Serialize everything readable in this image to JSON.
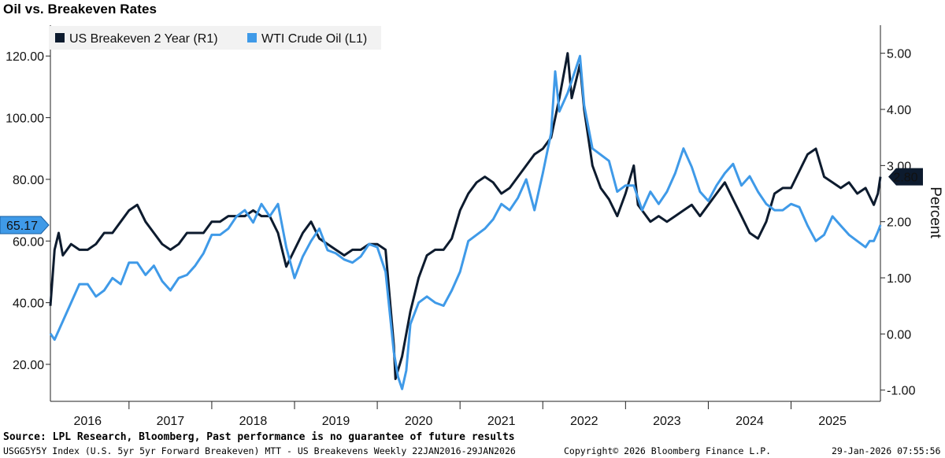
{
  "header": {
    "title": "Oil vs. Breakeven Rates"
  },
  "footer": {
    "source": "Source: LPL Research, Bloomberg, Past performance is no guarantee of future results",
    "index_line": "USGG5Y5Y Index (U.S. 5yr 5yr Forward Breakeven) MTT - US Breakevens Weekly 22JAN2016-29JAN2026",
    "copyright": "Copyright© 2026 Bloomberg Finance L.P.",
    "timestamp": "29-Jan-2026 07:55:56"
  },
  "colors": {
    "breakeven": "#0d1b2e",
    "oil": "#3f9ae8",
    "axis": "#222222"
  },
  "chart_data": {
    "type": "line",
    "x_tick_labels": [
      "2016",
      "2017",
      "2018",
      "2019",
      "2020",
      "2021",
      "2022",
      "2023",
      "2024",
      "2025"
    ],
    "x_range": [
      2016.05,
      2026.08
    ],
    "left_axis": {
      "ticks": [
        "20.00",
        "40.00",
        "60.00",
        "80.00",
        "100.00",
        "120.00"
      ],
      "range": [
        8,
        130
      ]
    },
    "right_axis": {
      "label": "Percent",
      "ticks": [
        "-1.00",
        "0.00",
        "1.00",
        "2.00",
        "3.00",
        "4.00",
        "5.00"
      ],
      "range": [
        -1.2,
        5.5
      ]
    },
    "legend": [
      {
        "name": "US Breakeven 2 Year  (R1)",
        "color": "#0d1b2e"
      },
      {
        "name": "WTI Crude Oil (L1)",
        "color": "#3f9ae8"
      }
    ],
    "last_value_labels": {
      "oil": "65.17",
      "breakeven": "2.80"
    },
    "series": [
      {
        "name": "WTI Crude Oil (L1)",
        "axis": "left",
        "points": [
          [
            2016.05,
            30
          ],
          [
            2016.1,
            28
          ],
          [
            2016.2,
            34
          ],
          [
            2016.3,
            40
          ],
          [
            2016.4,
            46
          ],
          [
            2016.5,
            46
          ],
          [
            2016.6,
            42
          ],
          [
            2016.7,
            44
          ],
          [
            2016.8,
            48
          ],
          [
            2016.9,
            46
          ],
          [
            2017.0,
            53
          ],
          [
            2017.1,
            53
          ],
          [
            2017.2,
            49
          ],
          [
            2017.3,
            52
          ],
          [
            2017.4,
            47
          ],
          [
            2017.5,
            44
          ],
          [
            2017.6,
            48
          ],
          [
            2017.7,
            49
          ],
          [
            2017.8,
            52
          ],
          [
            2017.9,
            56
          ],
          [
            2018.0,
            62
          ],
          [
            2018.1,
            62
          ],
          [
            2018.2,
            64
          ],
          [
            2018.3,
            68
          ],
          [
            2018.4,
            70
          ],
          [
            2018.5,
            66
          ],
          [
            2018.6,
            72
          ],
          [
            2018.7,
            68
          ],
          [
            2018.8,
            72
          ],
          [
            2018.9,
            58
          ],
          [
            2019.0,
            48
          ],
          [
            2019.1,
            55
          ],
          [
            2019.2,
            60
          ],
          [
            2019.3,
            64
          ],
          [
            2019.4,
            57
          ],
          [
            2019.5,
            56
          ],
          [
            2019.6,
            54
          ],
          [
            2019.7,
            53
          ],
          [
            2019.8,
            55
          ],
          [
            2019.9,
            59
          ],
          [
            2020.0,
            58
          ],
          [
            2020.1,
            50
          ],
          [
            2020.2,
            24
          ],
          [
            2020.25,
            16
          ],
          [
            2020.3,
            12
          ],
          [
            2020.35,
            18
          ],
          [
            2020.4,
            33
          ],
          [
            2020.5,
            40
          ],
          [
            2020.6,
            42
          ],
          [
            2020.7,
            40
          ],
          [
            2020.8,
            39
          ],
          [
            2020.9,
            44
          ],
          [
            2021.0,
            50
          ],
          [
            2021.1,
            60
          ],
          [
            2021.2,
            62
          ],
          [
            2021.3,
            64
          ],
          [
            2021.4,
            67
          ],
          [
            2021.5,
            72
          ],
          [
            2021.6,
            70
          ],
          [
            2021.7,
            74
          ],
          [
            2021.8,
            80
          ],
          [
            2021.9,
            70
          ],
          [
            2022.0,
            82
          ],
          [
            2022.1,
            95
          ],
          [
            2022.15,
            115
          ],
          [
            2022.2,
            102
          ],
          [
            2022.3,
            108
          ],
          [
            2022.4,
            116
          ],
          [
            2022.45,
            120
          ],
          [
            2022.5,
            104
          ],
          [
            2022.6,
            90
          ],
          [
            2022.7,
            88
          ],
          [
            2022.8,
            86
          ],
          [
            2022.9,
            76
          ],
          [
            2023.0,
            78
          ],
          [
            2023.1,
            78
          ],
          [
            2023.2,
            70
          ],
          [
            2023.3,
            76
          ],
          [
            2023.4,
            72
          ],
          [
            2023.5,
            76
          ],
          [
            2023.6,
            82
          ],
          [
            2023.7,
            90
          ],
          [
            2023.8,
            84
          ],
          [
            2023.9,
            76
          ],
          [
            2024.0,
            73
          ],
          [
            2024.1,
            78
          ],
          [
            2024.2,
            82
          ],
          [
            2024.3,
            85
          ],
          [
            2024.4,
            78
          ],
          [
            2024.5,
            81
          ],
          [
            2024.6,
            76
          ],
          [
            2024.7,
            72
          ],
          [
            2024.8,
            70
          ],
          [
            2024.9,
            70
          ],
          [
            2025.0,
            72
          ],
          [
            2025.1,
            71
          ],
          [
            2025.2,
            65
          ],
          [
            2025.3,
            60
          ],
          [
            2025.4,
            62
          ],
          [
            2025.5,
            68
          ],
          [
            2025.6,
            65
          ],
          [
            2025.7,
            62
          ],
          [
            2025.8,
            60
          ],
          [
            2025.9,
            58
          ],
          [
            2025.95,
            60
          ],
          [
            2026.0,
            60
          ],
          [
            2026.05,
            63
          ],
          [
            2026.08,
            65.17
          ]
        ]
      },
      {
        "name": "US Breakeven 2 Year  (R1)",
        "axis": "right",
        "points": [
          [
            2016.05,
            0.5
          ],
          [
            2016.1,
            1.5
          ],
          [
            2016.15,
            1.8
          ],
          [
            2016.2,
            1.4
          ],
          [
            2016.3,
            1.6
          ],
          [
            2016.4,
            1.5
          ],
          [
            2016.5,
            1.5
          ],
          [
            2016.6,
            1.6
          ],
          [
            2016.7,
            1.8
          ],
          [
            2016.8,
            1.8
          ],
          [
            2016.9,
            2.0
          ],
          [
            2017.0,
            2.2
          ],
          [
            2017.1,
            2.3
          ],
          [
            2017.2,
            2.0
          ],
          [
            2017.3,
            1.8
          ],
          [
            2017.4,
            1.6
          ],
          [
            2017.5,
            1.5
          ],
          [
            2017.6,
            1.6
          ],
          [
            2017.7,
            1.8
          ],
          [
            2017.8,
            1.8
          ],
          [
            2017.9,
            1.8
          ],
          [
            2018.0,
            2.0
          ],
          [
            2018.1,
            2.0
          ],
          [
            2018.2,
            2.1
          ],
          [
            2018.3,
            2.1
          ],
          [
            2018.4,
            2.1
          ],
          [
            2018.5,
            2.2
          ],
          [
            2018.6,
            2.1
          ],
          [
            2018.7,
            2.1
          ],
          [
            2018.8,
            1.8
          ],
          [
            2018.9,
            1.2
          ],
          [
            2019.0,
            1.5
          ],
          [
            2019.1,
            1.8
          ],
          [
            2019.2,
            2.0
          ],
          [
            2019.3,
            1.7
          ],
          [
            2019.4,
            1.6
          ],
          [
            2019.5,
            1.5
          ],
          [
            2019.6,
            1.4
          ],
          [
            2019.7,
            1.5
          ],
          [
            2019.8,
            1.5
          ],
          [
            2019.9,
            1.6
          ],
          [
            2020.0,
            1.6
          ],
          [
            2020.1,
            1.5
          ],
          [
            2020.2,
            -0.2
          ],
          [
            2020.22,
            -0.8
          ],
          [
            2020.3,
            -0.4
          ],
          [
            2020.4,
            0.4
          ],
          [
            2020.5,
            1.0
          ],
          [
            2020.6,
            1.4
          ],
          [
            2020.7,
            1.5
          ],
          [
            2020.8,
            1.5
          ],
          [
            2020.9,
            1.7
          ],
          [
            2021.0,
            2.2
          ],
          [
            2021.1,
            2.5
          ],
          [
            2021.2,
            2.7
          ],
          [
            2021.3,
            2.8
          ],
          [
            2021.4,
            2.7
          ],
          [
            2021.5,
            2.5
          ],
          [
            2021.6,
            2.6
          ],
          [
            2021.7,
            2.8
          ],
          [
            2021.8,
            3.0
          ],
          [
            2021.9,
            3.2
          ],
          [
            2022.0,
            3.3
          ],
          [
            2022.1,
            3.5
          ],
          [
            2022.2,
            4.2
          ],
          [
            2022.3,
            5.0
          ],
          [
            2022.35,
            4.2
          ],
          [
            2022.45,
            4.8
          ],
          [
            2022.5,
            4.0
          ],
          [
            2022.6,
            3.0
          ],
          [
            2022.7,
            2.6
          ],
          [
            2022.8,
            2.4
          ],
          [
            2022.9,
            2.1
          ],
          [
            2023.0,
            2.5
          ],
          [
            2023.1,
            3.0
          ],
          [
            2023.15,
            2.3
          ],
          [
            2023.2,
            2.2
          ],
          [
            2023.3,
            2.0
          ],
          [
            2023.4,
            2.1
          ],
          [
            2023.5,
            2.0
          ],
          [
            2023.6,
            2.1
          ],
          [
            2023.7,
            2.2
          ],
          [
            2023.8,
            2.3
          ],
          [
            2023.9,
            2.1
          ],
          [
            2024.0,
            2.3
          ],
          [
            2024.1,
            2.5
          ],
          [
            2024.2,
            2.7
          ],
          [
            2024.3,
            2.4
          ],
          [
            2024.4,
            2.1
          ],
          [
            2024.5,
            1.8
          ],
          [
            2024.6,
            1.7
          ],
          [
            2024.7,
            2.0
          ],
          [
            2024.8,
            2.5
          ],
          [
            2024.9,
            2.6
          ],
          [
            2025.0,
            2.6
          ],
          [
            2025.1,
            2.9
          ],
          [
            2025.2,
            3.2
          ],
          [
            2025.3,
            3.3
          ],
          [
            2025.4,
            2.8
          ],
          [
            2025.5,
            2.7
          ],
          [
            2025.6,
            2.6
          ],
          [
            2025.7,
            2.7
          ],
          [
            2025.8,
            2.5
          ],
          [
            2025.9,
            2.6
          ],
          [
            2026.0,
            2.3
          ],
          [
            2026.05,
            2.5
          ],
          [
            2026.08,
            2.8
          ]
        ]
      }
    ]
  }
}
